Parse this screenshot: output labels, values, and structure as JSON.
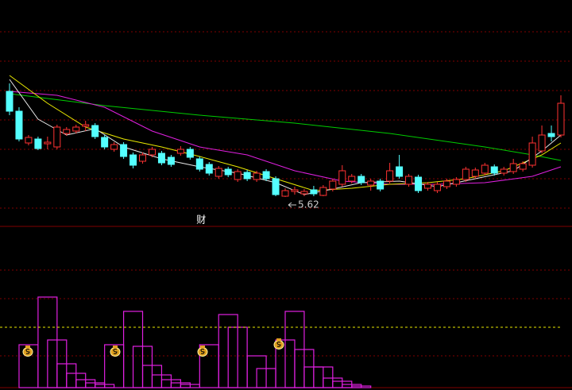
{
  "chart_data": {
    "type": "candlestick",
    "xlim": [
      0,
      58
    ],
    "ylim": [
      5.4,
      7.8
    ],
    "up_color": "#ff3232",
    "down_color": "#54ffff",
    "candles": {
      "open": [
        6.95,
        6.7,
        6.3,
        6.35,
        6.29,
        6.25,
        6.42,
        6.45,
        6.51,
        6.52,
        6.37,
        6.22,
        6.28,
        6.15,
        6.07,
        6.15,
        6.17,
        6.12,
        6.17,
        6.22,
        6.1,
        6.03,
        5.88,
        5.97,
        5.84,
        5.93,
        5.84,
        5.94,
        5.85,
        5.63,
        5.69,
        5.66,
        5.71,
        5.64,
        5.72,
        5.78,
        5.82,
        5.88,
        5.77,
        5.82,
        5.82,
        6.0,
        5.78,
        5.87,
        5.73,
        5.7,
        5.75,
        5.78,
        5.84,
        5.88,
        5.92,
        6.0,
        5.92,
        5.94,
        5.97,
        6.02,
        6.2,
        6.42,
        6.4
      ],
      "high": [
        7.05,
        6.75,
        6.4,
        6.38,
        6.38,
        6.53,
        6.5,
        6.53,
        6.58,
        6.55,
        6.4,
        6.31,
        6.31,
        6.18,
        6.18,
        6.25,
        6.2,
        6.15,
        6.26,
        6.25,
        6.13,
        6.06,
        6.01,
        6.0,
        5.97,
        5.96,
        5.95,
        5.97,
        5.88,
        5.73,
        5.75,
        5.72,
        5.76,
        5.77,
        5.85,
        6.02,
        5.91,
        5.91,
        5.85,
        5.85,
        6.05,
        6.15,
        5.91,
        5.9,
        5.81,
        5.81,
        5.85,
        5.87,
        6.0,
        5.99,
        6.05,
        6.03,
        6.0,
        6.1,
        6.07,
        6.38,
        6.52,
        6.52,
        6.9
      ],
      "low": [
        6.65,
        6.32,
        6.27,
        6.21,
        6.22,
        6.22,
        6.39,
        6.42,
        6.45,
        6.35,
        6.22,
        6.19,
        6.1,
        5.98,
        6.04,
        6.12,
        6.02,
        6.0,
        6.14,
        6.09,
        5.94,
        5.89,
        5.85,
        5.87,
        5.81,
        5.82,
        5.81,
        5.82,
        5.63,
        5.62,
        5.65,
        5.63,
        5.63,
        5.63,
        5.69,
        5.75,
        5.79,
        5.77,
        5.7,
        5.69,
        5.79,
        5.85,
        5.75,
        5.67,
        5.7,
        5.67,
        5.72,
        5.75,
        5.81,
        5.85,
        5.89,
        5.89,
        5.89,
        5.91,
        5.94,
        5.99,
        6.17,
        6.32,
        6.37
      ],
      "close": [
        6.7,
        6.35,
        6.37,
        6.23,
        6.31,
        6.5,
        6.47,
        6.5,
        6.53,
        6.38,
        6.25,
        6.28,
        6.13,
        6.02,
        6.15,
        6.22,
        6.05,
        6.03,
        6.22,
        6.12,
        5.97,
        5.92,
        5.98,
        5.9,
        5.94,
        5.85,
        5.92,
        5.85,
        5.65,
        5.7,
        5.71,
        5.69,
        5.66,
        5.74,
        5.82,
        5.95,
        5.88,
        5.8,
        5.82,
        5.72,
        5.95,
        5.88,
        5.88,
        5.7,
        5.78,
        5.78,
        5.82,
        5.84,
        5.97,
        5.96,
        6.02,
        5.92,
        5.97,
        6.04,
        6.04,
        6.3,
        6.4,
        6.38,
        6.8
      ]
    },
    "ma_lines": [
      {
        "color": "#00cc00",
        "x": [
          0,
          10,
          20,
          30,
          40,
          50,
          55,
          58
        ],
        "values": [
          6.92,
          6.77,
          6.65,
          6.55,
          6.42,
          6.25,
          6.15,
          6.08
        ]
      },
      {
        "color": "#e020e0",
        "x": [
          0,
          5,
          10,
          15,
          20,
          25,
          30,
          35,
          40,
          45,
          50,
          55,
          58
        ],
        "values": [
          6.95,
          6.9,
          6.75,
          6.45,
          6.25,
          6.15,
          5.95,
          5.82,
          5.78,
          5.78,
          5.8,
          5.88,
          6.0
        ]
      },
      {
        "color": "#e8e800",
        "x": [
          0,
          4,
          8,
          12,
          16,
          20,
          24,
          28,
          32,
          36,
          40,
          44,
          48,
          52,
          56,
          58
        ],
        "values": [
          7.15,
          6.8,
          6.5,
          6.35,
          6.25,
          6.13,
          6.0,
          5.85,
          5.7,
          5.73,
          5.78,
          5.8,
          5.85,
          5.95,
          6.15,
          6.3
        ]
      },
      {
        "color": "#e8e8e8",
        "x": [
          0,
          3,
          6,
          9,
          12,
          16,
          20,
          24,
          28,
          31,
          34,
          37,
          41,
          45,
          49,
          53,
          56,
          58
        ],
        "values": [
          7.1,
          6.6,
          6.4,
          6.48,
          6.25,
          6.1,
          6.0,
          5.92,
          5.8,
          5.65,
          5.72,
          5.8,
          5.82,
          5.75,
          5.85,
          5.95,
          6.2,
          6.4
        ]
      }
    ],
    "low_marker": {
      "index": 29,
      "value": 5.62
    },
    "annotation": {
      "index": 20,
      "text": "财"
    },
    "bars": {
      "color": "#e020e0",
      "width": 2,
      "ylim": [
        0,
        100
      ],
      "x": [
        1,
        3,
        4,
        5,
        6,
        7,
        8,
        9,
        10,
        12,
        13,
        14,
        15,
        16,
        17,
        18,
        20,
        22,
        23,
        25,
        26,
        28,
        29,
        30,
        31,
        32,
        33,
        34,
        35,
        36
      ],
      "values": [
        27,
        57,
        30,
        15,
        9,
        5,
        3,
        2,
        27,
        48,
        26,
        14,
        8,
        5,
        3,
        2,
        27,
        46,
        38,
        20,
        12,
        30,
        48,
        24,
        13,
        13,
        6,
        4,
        2,
        1
      ]
    },
    "threshold": {
      "value": 38,
      "color": "#e8e800"
    }
  }
}
